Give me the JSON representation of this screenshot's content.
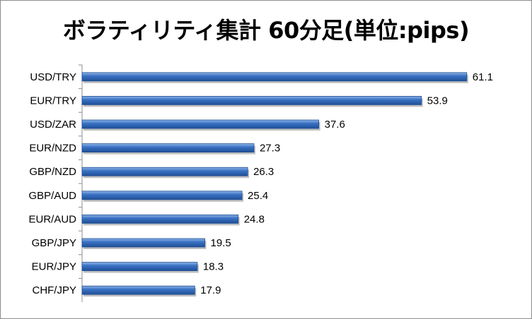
{
  "chart_data": {
    "type": "bar",
    "orientation": "horizontal",
    "title": "ボラティリティ集計 60分足(単位:pips)",
    "xlabel": "",
    "ylabel": "",
    "categories": [
      "USD/TRY",
      "EUR/TRY",
      "USD/ZAR",
      "EUR/NZD",
      "GBP/NZD",
      "GBP/AUD",
      "EUR/AUD",
      "GBP/JPY",
      "EUR/JPY",
      "CHF/JPY"
    ],
    "values": [
      61.1,
      53.9,
      37.6,
      27.3,
      26.3,
      25.4,
      24.8,
      19.5,
      18.3,
      17.9
    ],
    "value_labels": [
      "61.1",
      "53.9",
      "37.6",
      "27.3",
      "26.3",
      "25.4",
      "24.8",
      "19.5",
      "18.3",
      "17.9"
    ],
    "xlim": [
      0,
      70
    ],
    "grid": false,
    "legend": "none",
    "bar_color": "#3a72c4",
    "bar_dark": "#1f4f96",
    "bar_light": "#8fb4e6"
  }
}
